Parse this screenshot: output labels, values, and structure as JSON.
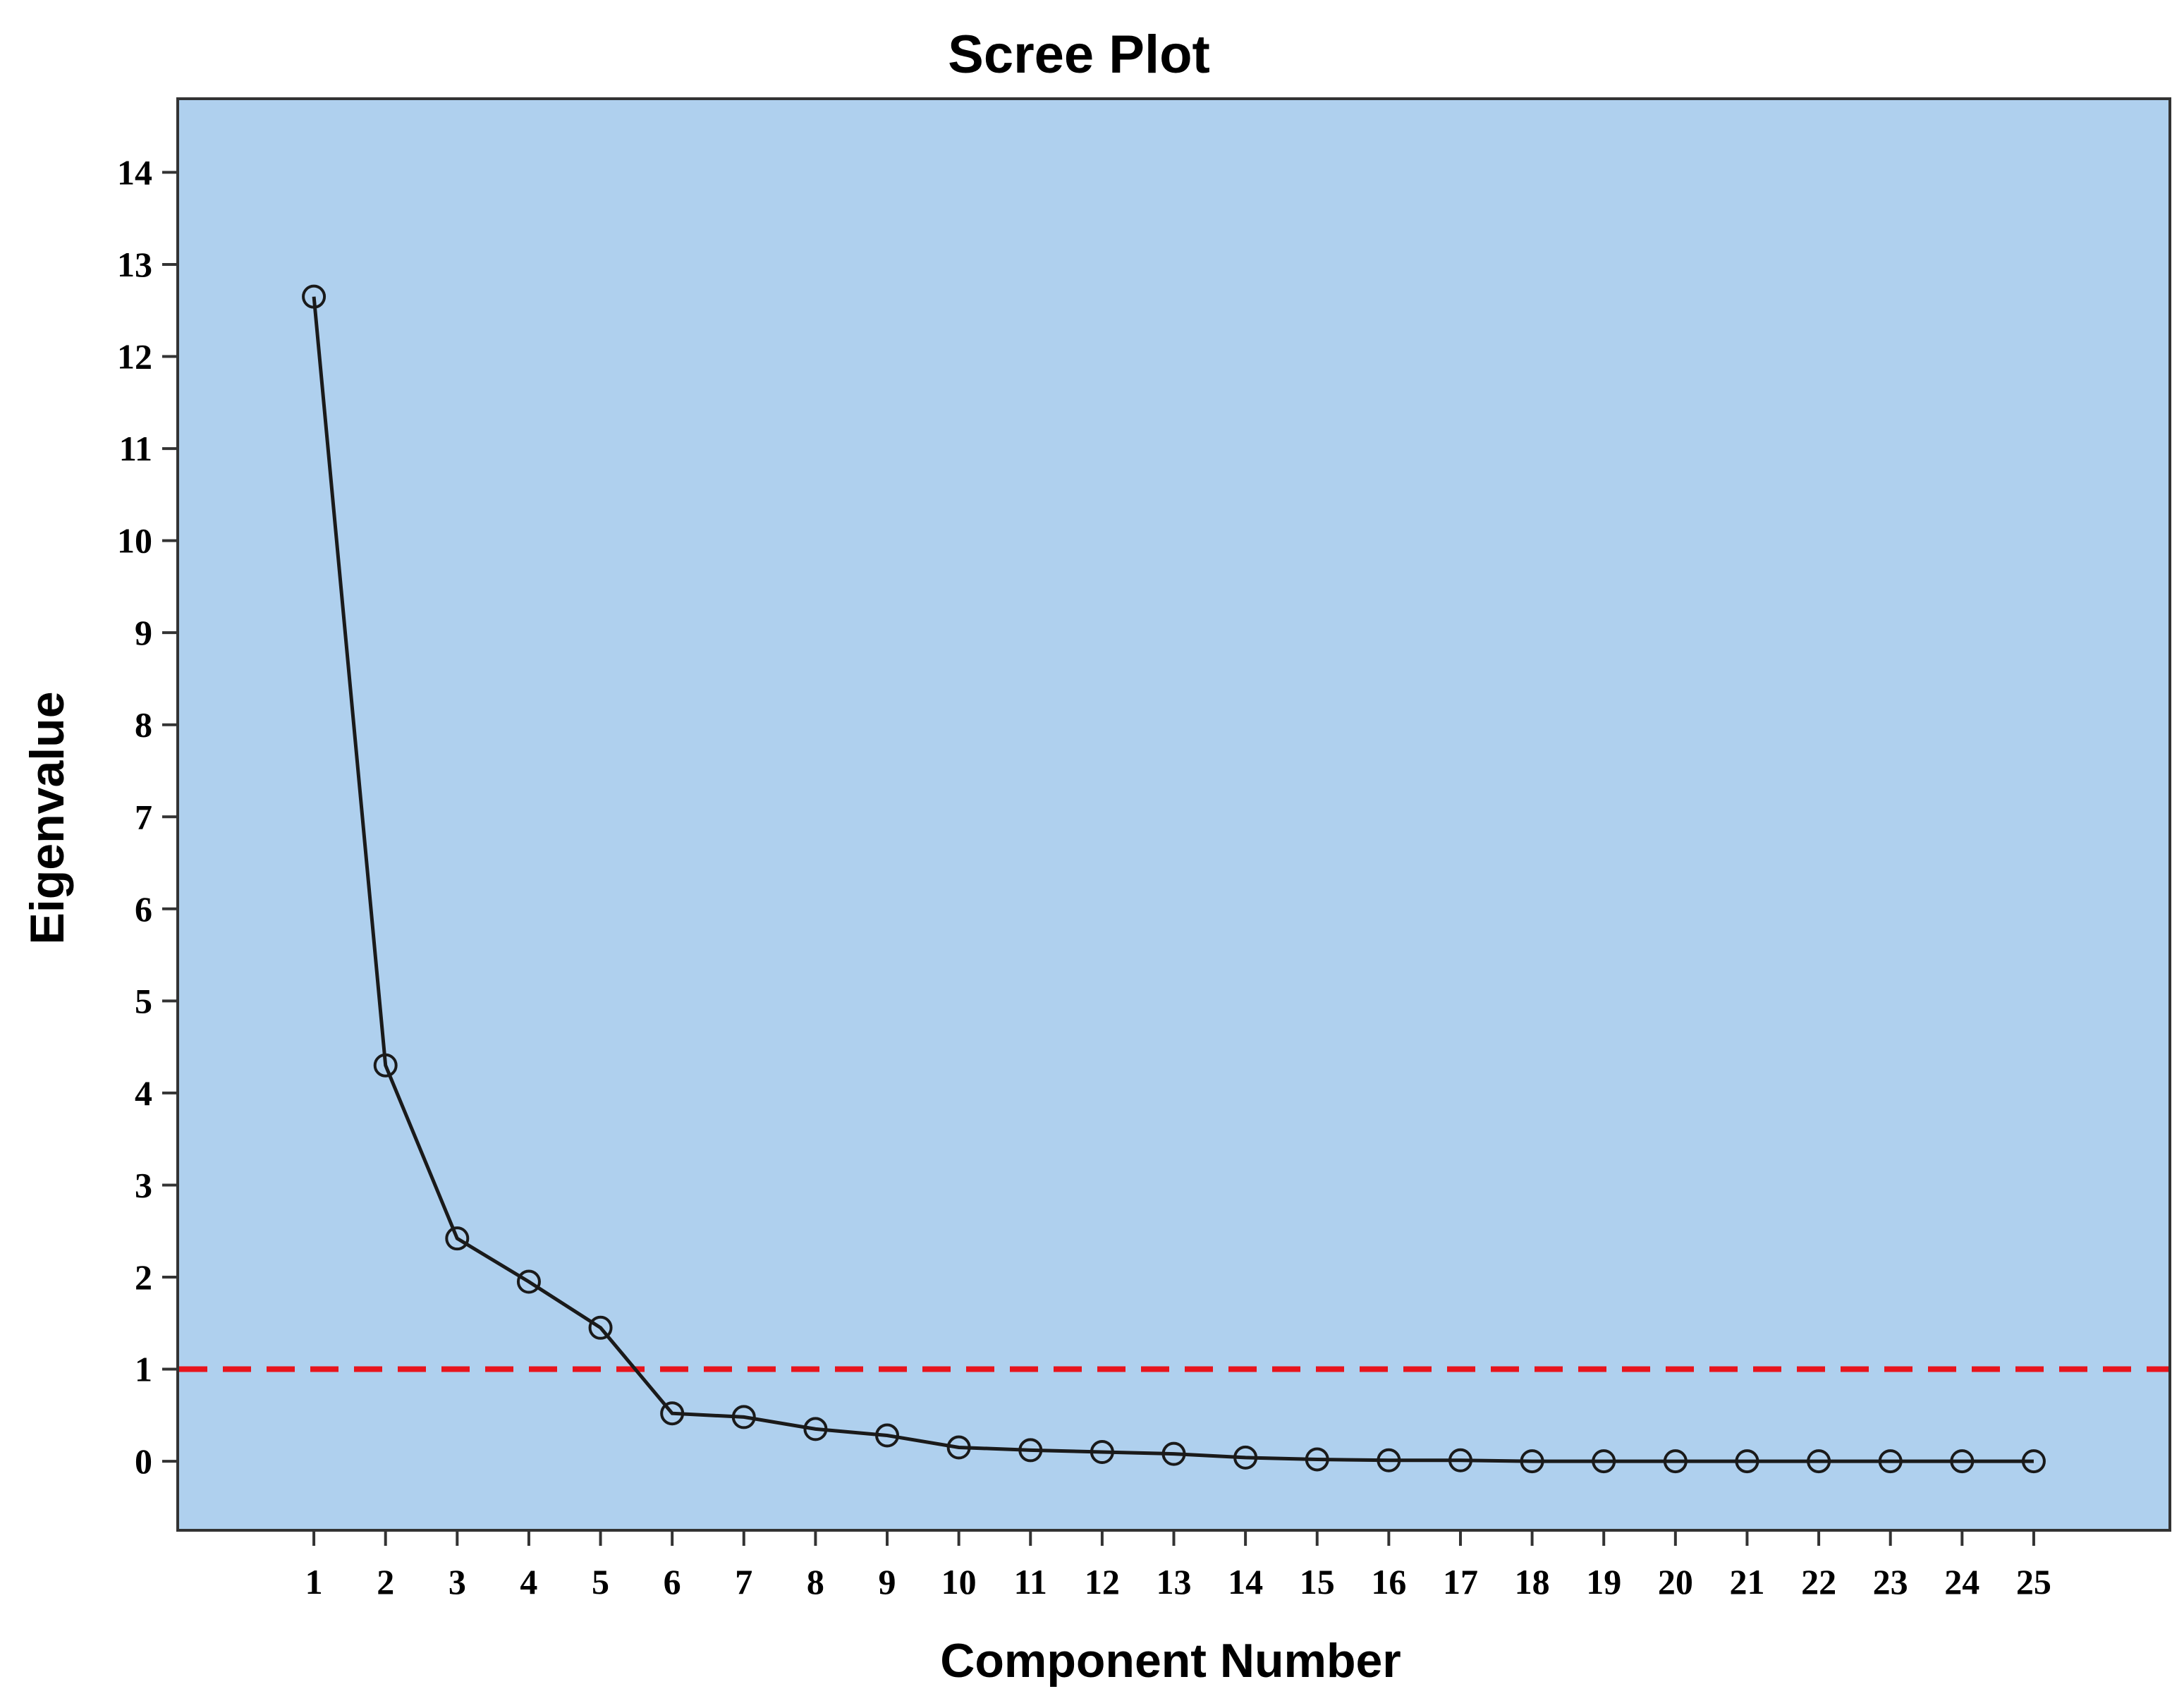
{
  "chart_data": {
    "type": "line",
    "title": "Scree Plot",
    "xlabel": "Component Number",
    "ylabel": "Eigenvalue",
    "x": [
      1,
      2,
      3,
      4,
      5,
      6,
      7,
      8,
      9,
      10,
      11,
      12,
      13,
      14,
      15,
      16,
      17,
      18,
      19,
      20,
      21,
      22,
      23,
      24,
      25
    ],
    "series": [
      {
        "values": [
          12.65,
          4.3,
          2.42,
          1.95,
          1.45,
          0.52,
          0.48,
          0.35,
          0.28,
          0.15,
          0.12,
          0.1,
          0.08,
          0.04,
          0.02,
          0.01,
          0.01,
          0.0,
          0.0,
          0.0,
          0.0,
          0.0,
          0.0,
          0.0,
          0.0
        ],
        "marker": "open-circle",
        "color": "#1a1a1a"
      }
    ],
    "reference_line": {
      "y": 1,
      "style": "dashed",
      "color": "#e8141c"
    },
    "xlim": [
      -0.9,
      26.9
    ],
    "ylim": [
      -0.75,
      14.8
    ],
    "yticks": [
      0,
      1,
      2,
      3,
      4,
      5,
      6,
      7,
      8,
      9,
      10,
      11,
      12,
      13,
      14
    ],
    "xticks": [
      1,
      2,
      3,
      4,
      5,
      6,
      7,
      8,
      9,
      10,
      11,
      12,
      13,
      14,
      15,
      16,
      17,
      18,
      19,
      20,
      21,
      22,
      23,
      24,
      25
    ],
    "grid": false,
    "plot_background": "#afd0ee"
  }
}
